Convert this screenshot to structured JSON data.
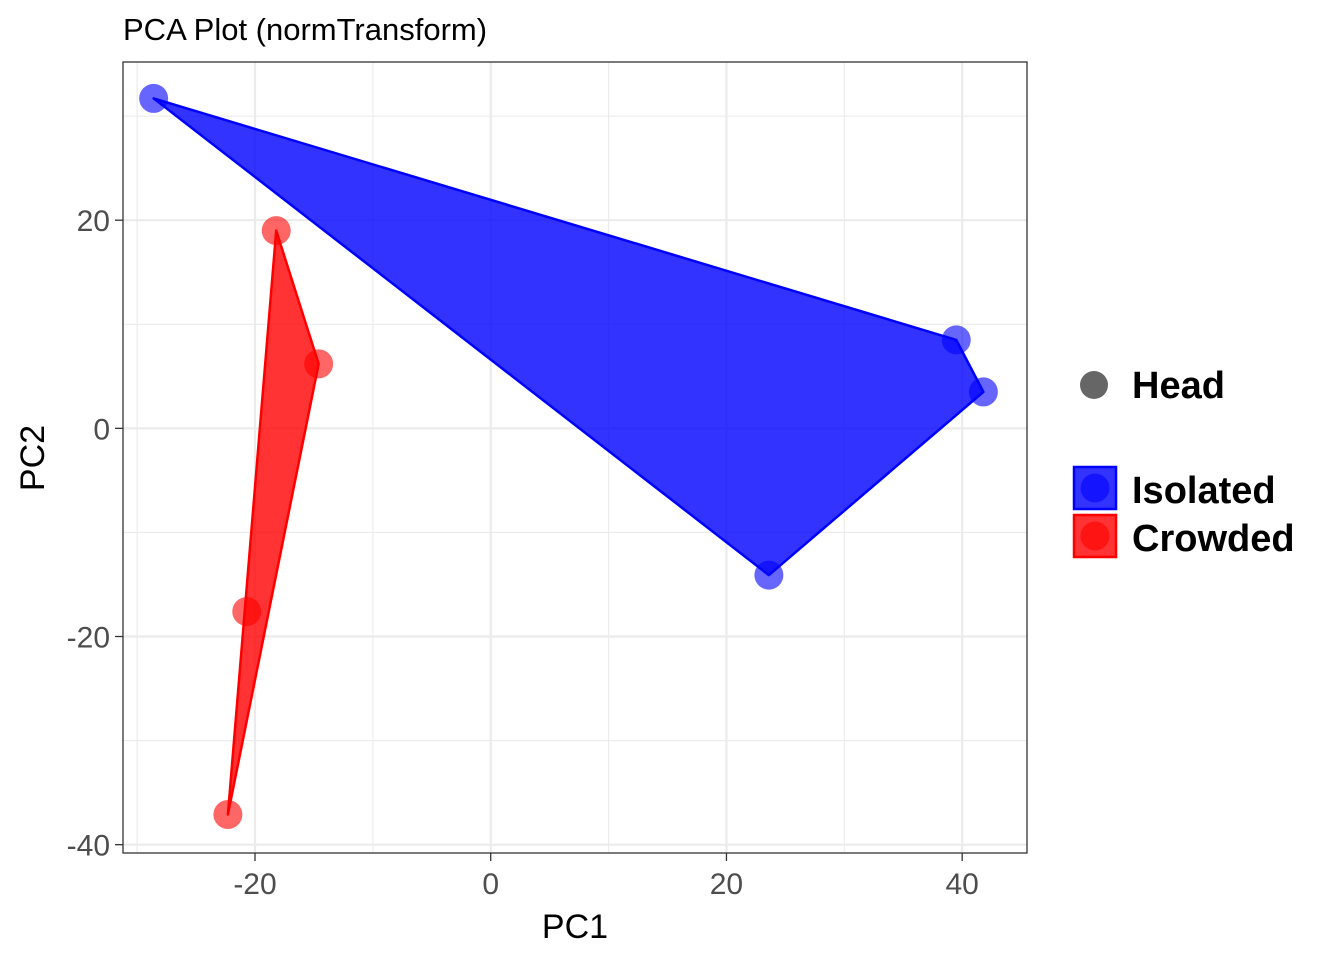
{
  "chart_data": {
    "type": "scatter",
    "title": "PCA Plot (normTransform)",
    "xlabel": "PC1",
    "ylabel": "PC2",
    "xlim": [
      -31.2,
      45.5
    ],
    "ylim": [
      -40.8,
      35.2
    ],
    "x_ticks": [
      -20,
      0,
      20,
      40
    ],
    "y_ticks": [
      20,
      0,
      -20,
      -40
    ],
    "x_tick_labels": [
      "-20",
      "0",
      "20",
      "40"
    ],
    "y_tick_labels": [
      "20",
      "0",
      "-20",
      "-40"
    ],
    "grid": true,
    "hulls": true,
    "series": [
      {
        "name": "Isolated",
        "color": "#0000ff",
        "points": [
          {
            "x": -28.6,
            "y": 31.7
          },
          {
            "x": 39.5,
            "y": 8.5
          },
          {
            "x": 41.8,
            "y": 3.5
          },
          {
            "x": 23.6,
            "y": -14.1
          }
        ]
      },
      {
        "name": "Crowded",
        "color": "#ff0000",
        "points": [
          {
            "x": -18.2,
            "y": 19.0
          },
          {
            "x": -14.6,
            "y": 6.2
          },
          {
            "x": -20.7,
            "y": -17.6
          },
          {
            "x": -22.3,
            "y": -37.1
          }
        ]
      }
    ],
    "legend": {
      "position": "right",
      "shape_title": "Head",
      "shape_color": "#666666",
      "entries": [
        "Isolated",
        "Crowded"
      ]
    }
  }
}
